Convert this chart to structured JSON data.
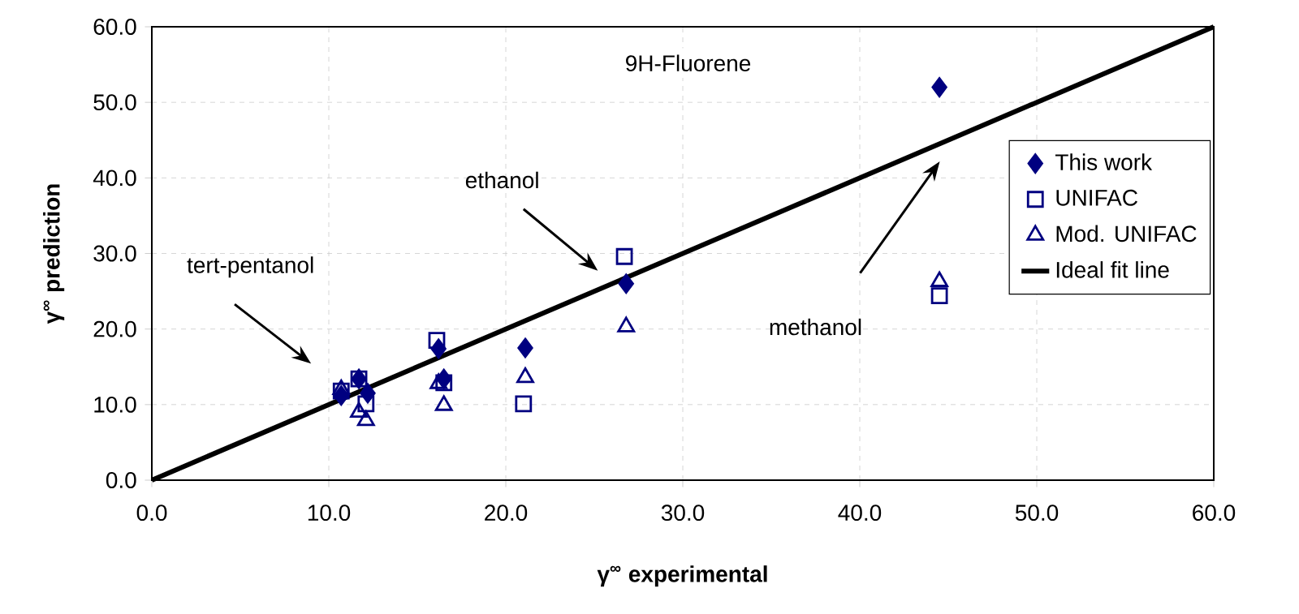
{
  "chart_data": {
    "type": "scatter",
    "title": "9H-Fluorene",
    "xlabel": "γ$^{∞}$ experimental",
    "ylabel": "γ$^{∞}$ prediction",
    "xlim": [
      0,
      60
    ],
    "ylim": [
      0,
      60
    ],
    "xticks": [
      {
        "value": 0,
        "label": "0.0"
      },
      {
        "value": 10,
        "label": "10.0"
      },
      {
        "value": 20,
        "label": "20.0"
      },
      {
        "value": 30,
        "label": "30.0"
      },
      {
        "value": 40,
        "label": "40.0"
      },
      {
        "value": 50,
        "label": "50.0"
      },
      {
        "value": 60,
        "label": "60.0"
      }
    ],
    "yticks": [
      {
        "value": 0,
        "label": "0.0"
      },
      {
        "value": 10,
        "label": "10.0"
      },
      {
        "value": 20,
        "label": "20.0"
      },
      {
        "value": 30,
        "label": "30.0"
      },
      {
        "value": 40,
        "label": "40.0"
      },
      {
        "value": 50,
        "label": "50.0"
      },
      {
        "value": 60,
        "label": "60.0"
      }
    ],
    "grid": true,
    "legend": "right",
    "series": [
      {
        "name": "This work",
        "color": "#000080",
        "marker": "diamond",
        "x": [
          10.7,
          11.7,
          12.2,
          16.2,
          16.5,
          21.1,
          26.8,
          44.5
        ],
        "values": [
          11.2,
          13.4,
          11.5,
          17.4,
          13.4,
          17.5,
          26.0,
          52.0
        ]
      },
      {
        "name": "UNIFAC",
        "color": "#000080",
        "marker": "square",
        "x": [
          10.7,
          11.7,
          12.1,
          16.1,
          16.5,
          21.0,
          26.7,
          44.5
        ],
        "values": [
          11.8,
          13.4,
          10.1,
          18.5,
          12.9,
          10.1,
          29.6,
          24.4
        ]
      },
      {
        "name": "Mod. UNIFAC",
        "color": "#000080",
        "marker": "triangle",
        "x": [
          10.7,
          11.7,
          12.1,
          16.2,
          16.5,
          21.1,
          26.8,
          44.5
        ],
        "values": [
          12.0,
          9.0,
          7.9,
          12.8,
          9.9,
          13.6,
          20.3,
          26.3
        ]
      },
      {
        "name": "Ideal fit line",
        "type": "line",
        "color": "#000000",
        "marker": "none",
        "line_style": "solid",
        "x": [
          0,
          60
        ],
        "values": [
          0,
          60
        ]
      }
    ],
    "annotations": [
      "tert-pentanol",
      "ethanol",
      "methanol"
    ]
  }
}
